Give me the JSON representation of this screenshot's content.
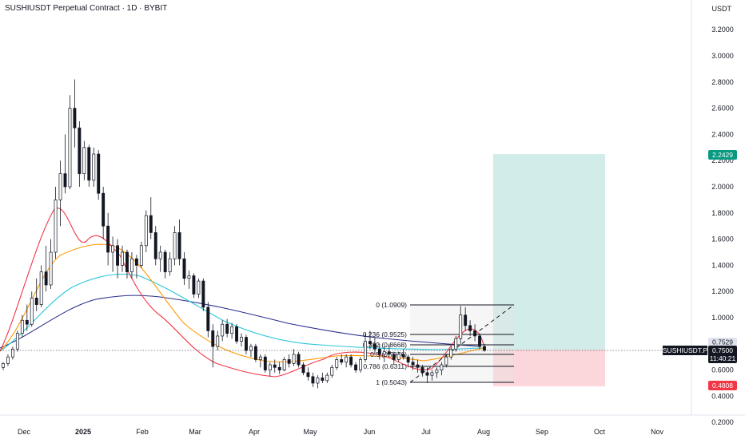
{
  "header": {
    "title": "SUSHIUSDT Perpetual Contract · 1D · BYBIT",
    "unit": "USDT"
  },
  "chart_data": {
    "type": "candlestick",
    "y_ticks": [
      "3.2000",
      "3.0000",
      "2.8000",
      "2.6000",
      "2.4000",
      "2.2000",
      "2.0000",
      "1.8000",
      "1.6000",
      "1.4000",
      "1.2000",
      "1.0000",
      "0.8000",
      "0.6000",
      "0.4000",
      "0.2000"
    ],
    "x_ticks": [
      "Dec",
      "2025",
      "Feb",
      "Mar",
      "Apr",
      "May",
      "Jun",
      "Jul",
      "Aug",
      "Sep",
      "Oct",
      "Nov"
    ],
    "ylim": [
      0.16,
      3.4
    ],
    "price_tags": {
      "target": "2.2429",
      "stop": "0.4808",
      "level": "0.7529",
      "symbol": "SUSHIUSDT.P",
      "last": "0.7500",
      "countdown": "11:40:21"
    },
    "fib_levels": [
      {
        "label": "0 (1.0909)",
        "value": 1.0909
      },
      {
        "label": "0.236 (0.9525)",
        "value": 0.9525
      },
      {
        "label": "0.382 (0.8668)",
        "value": 0.8668
      },
      {
        "label": "0.5 (0.7976)",
        "value": 0.7976
      },
      {
        "label": "0.786 (0.6311)",
        "value": 0.6311
      },
      {
        "label": "1 (0.5043)",
        "value": 0.5043
      }
    ],
    "position": {
      "entry": 0.7529,
      "target": 2.2429,
      "stop": 0.4808
    },
    "candles": [
      [
        0.62,
        0.66,
        0.6,
        0.65
      ],
      [
        0.65,
        0.72,
        0.63,
        0.7
      ],
      [
        0.7,
        0.78,
        0.68,
        0.76
      ],
      [
        0.76,
        0.9,
        0.74,
        0.88
      ],
      [
        0.88,
        1.02,
        0.85,
        0.98
      ],
      [
        0.98,
        1.1,
        0.9,
        0.95
      ],
      [
        0.95,
        1.2,
        0.93,
        1.15
      ],
      [
        1.15,
        1.3,
        1.05,
        1.1
      ],
      [
        1.1,
        1.4,
        1.08,
        1.35
      ],
      [
        1.35,
        1.55,
        1.2,
        1.25
      ],
      [
        1.25,
        1.6,
        1.22,
        1.5
      ],
      [
        1.5,
        2.0,
        1.45,
        1.9
      ],
      [
        1.9,
        2.2,
        1.7,
        2.1
      ],
      [
        2.1,
        2.4,
        1.95,
        2.0
      ],
      [
        2.0,
        2.7,
        1.98,
        2.6
      ],
      [
        2.6,
        2.82,
        2.3,
        2.45
      ],
      [
        2.45,
        2.5,
        2.0,
        2.1
      ],
      [
        2.1,
        2.35,
        2.05,
        2.3
      ],
      [
        2.3,
        2.32,
        2.0,
        2.05
      ],
      [
        2.05,
        2.3,
        2.0,
        2.25
      ],
      [
        2.25,
        2.28,
        1.9,
        1.95
      ],
      [
        1.95,
        2.0,
        1.6,
        1.7
      ],
      [
        1.7,
        1.8,
        1.4,
        1.5
      ],
      [
        1.5,
        1.62,
        1.35,
        1.55
      ],
      [
        1.55,
        1.6,
        1.3,
        1.4
      ],
      [
        1.4,
        1.55,
        1.35,
        1.5
      ],
      [
        1.5,
        1.52,
        1.3,
        1.35
      ],
      [
        1.35,
        1.5,
        1.3,
        1.45
      ],
      [
        1.45,
        1.48,
        1.3,
        1.4
      ],
      [
        1.4,
        1.58,
        1.38,
        1.55
      ],
      [
        1.55,
        1.82,
        1.5,
        1.78
      ],
      [
        1.78,
        1.92,
        1.6,
        1.65
      ],
      [
        1.65,
        1.7,
        1.4,
        1.45
      ],
      [
        1.45,
        1.55,
        1.35,
        1.5
      ],
      [
        1.5,
        1.52,
        1.3,
        1.35
      ],
      [
        1.35,
        1.5,
        1.32,
        1.45
      ],
      [
        1.45,
        1.7,
        1.4,
        1.65
      ],
      [
        1.65,
        1.75,
        1.4,
        1.45
      ],
      [
        1.45,
        1.5,
        1.25,
        1.3
      ],
      [
        1.3,
        1.36,
        1.22,
        1.32
      ],
      [
        1.32,
        1.34,
        1.15,
        1.18
      ],
      [
        1.18,
        1.3,
        1.15,
        1.28
      ],
      [
        1.28,
        1.3,
        1.05,
        1.08
      ],
      [
        1.08,
        1.12,
        0.85,
        0.9
      ],
      [
        0.9,
        0.95,
        0.62,
        0.78
      ],
      [
        0.78,
        0.9,
        0.75,
        0.86
      ],
      [
        0.86,
        0.98,
        0.82,
        0.95
      ],
      [
        0.95,
        0.99,
        0.85,
        0.88
      ],
      [
        0.88,
        0.96,
        0.84,
        0.93
      ],
      [
        0.93,
        0.95,
        0.8,
        0.82
      ],
      [
        0.82,
        0.88,
        0.78,
        0.85
      ],
      [
        0.85,
        0.87,
        0.72,
        0.75
      ],
      [
        0.75,
        0.8,
        0.7,
        0.78
      ],
      [
        0.78,
        0.8,
        0.66,
        0.68
      ],
      [
        0.68,
        0.72,
        0.62,
        0.7
      ],
      [
        0.7,
        0.72,
        0.58,
        0.6
      ],
      [
        0.6,
        0.66,
        0.55,
        0.64
      ],
      [
        0.64,
        0.68,
        0.58,
        0.62
      ],
      [
        0.62,
        0.66,
        0.57,
        0.6
      ],
      [
        0.6,
        0.7,
        0.59,
        0.68
      ],
      [
        0.68,
        0.72,
        0.62,
        0.65
      ],
      [
        0.65,
        0.76,
        0.63,
        0.72
      ],
      [
        0.72,
        0.74,
        0.62,
        0.64
      ],
      [
        0.64,
        0.66,
        0.56,
        0.58
      ],
      [
        0.58,
        0.62,
        0.52,
        0.55
      ],
      [
        0.55,
        0.58,
        0.47,
        0.5
      ],
      [
        0.5,
        0.56,
        0.46,
        0.54
      ],
      [
        0.54,
        0.58,
        0.5,
        0.52
      ],
      [
        0.52,
        0.58,
        0.5,
        0.56
      ],
      [
        0.56,
        0.64,
        0.54,
        0.62
      ],
      [
        0.62,
        0.7,
        0.6,
        0.68
      ],
      [
        0.68,
        0.72,
        0.64,
        0.66
      ],
      [
        0.66,
        0.72,
        0.62,
        0.7
      ],
      [
        0.7,
        0.72,
        0.62,
        0.64
      ],
      [
        0.64,
        0.66,
        0.58,
        0.6
      ],
      [
        0.6,
        0.7,
        0.58,
        0.68
      ],
      [
        0.68,
        0.88,
        0.66,
        0.82
      ],
      [
        0.82,
        0.9,
        0.76,
        0.8
      ],
      [
        0.8,
        0.85,
        0.72,
        0.76
      ],
      [
        0.76,
        0.8,
        0.68,
        0.72
      ],
      [
        0.72,
        0.78,
        0.66,
        0.74
      ],
      [
        0.74,
        0.8,
        0.7,
        0.72
      ],
      [
        0.72,
        0.74,
        0.64,
        0.68
      ],
      [
        0.68,
        0.74,
        0.66,
        0.72
      ],
      [
        0.72,
        0.76,
        0.68,
        0.7
      ],
      [
        0.7,
        0.72,
        0.62,
        0.66
      ],
      [
        0.66,
        0.7,
        0.6,
        0.64
      ],
      [
        0.64,
        0.68,
        0.58,
        0.62
      ],
      [
        0.62,
        0.64,
        0.55,
        0.58
      ],
      [
        0.58,
        0.62,
        0.5,
        0.56
      ],
      [
        0.56,
        0.6,
        0.52,
        0.58
      ],
      [
        0.58,
        0.62,
        0.54,
        0.6
      ],
      [
        0.6,
        0.66,
        0.56,
        0.64
      ],
      [
        0.64,
        0.72,
        0.62,
        0.7
      ],
      [
        0.7,
        0.78,
        0.68,
        0.76
      ],
      [
        0.76,
        0.86,
        0.74,
        0.84
      ],
      [
        0.84,
        1.09,
        0.8,
        1.02
      ],
      [
        1.02,
        1.08,
        0.9,
        0.94
      ],
      [
        0.94,
        0.98,
        0.86,
        0.9
      ],
      [
        0.9,
        0.95,
        0.82,
        0.86
      ],
      [
        0.86,
        0.88,
        0.76,
        0.78
      ],
      [
        0.78,
        0.8,
        0.74,
        0.75
      ]
    ]
  }
}
